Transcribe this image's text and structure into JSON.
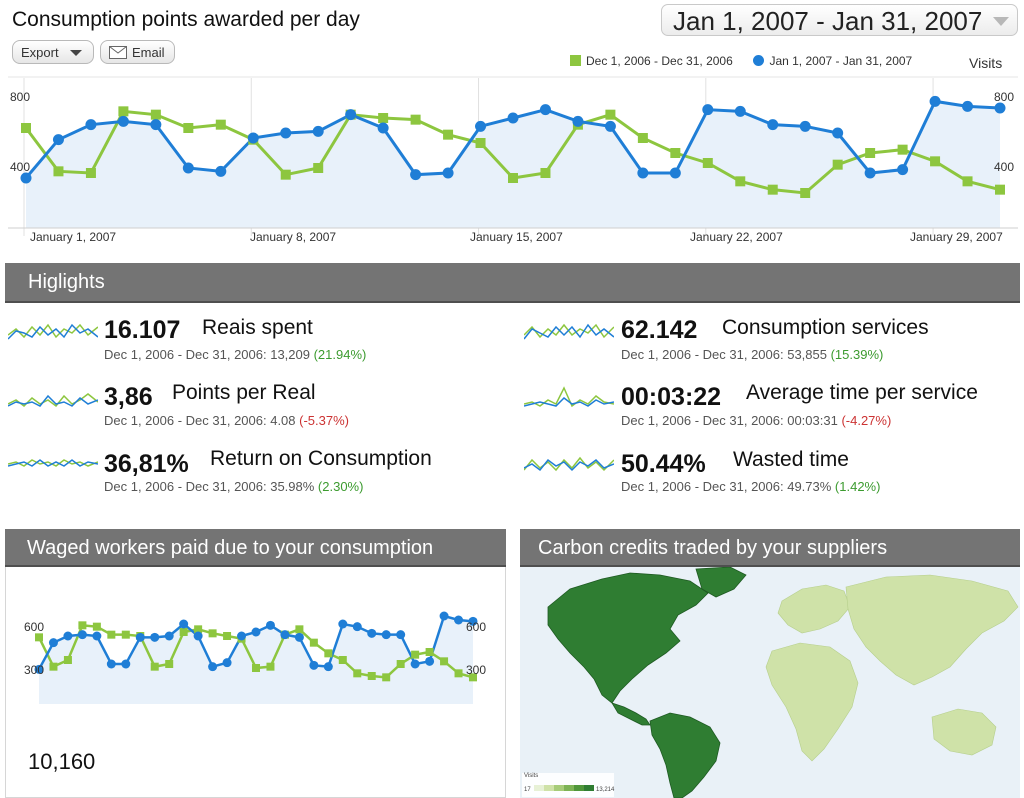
{
  "header": {
    "title": "Consumption points awarded per day",
    "date_range": "Jan 1, 2007 - Jan 31, 2007",
    "export_label": "Export",
    "email_label": "Email"
  },
  "colors": {
    "previous": "#8dc63f",
    "current": "#1f7ed6",
    "area_fill": "#e8f1fa",
    "section_bar": "#747474"
  },
  "legend": {
    "previous": "Dec 1, 2006 - Dec 31, 2006",
    "current": "Jan 1, 2007 - Jan 31, 2007",
    "metric": "Visits"
  },
  "main_chart": {
    "y_top_left": "800",
    "y_mid_left": "400",
    "y_top_right": "800",
    "y_mid_right": "400",
    "x_labels": [
      "January 1, 2007",
      "January 8, 2007",
      "January 15, 2007",
      "January 22, 2007",
      "January 29, 2007"
    ]
  },
  "chart_data": [
    {
      "type": "line",
      "title": "Consumption points awarded per day",
      "ylim": [
        0,
        900
      ],
      "y_ticks": [
        400,
        800
      ],
      "x_tick_labels": [
        "January 1, 2007",
        "January 8, 2007",
        "January 15, 2007",
        "January 22, 2007",
        "January 29, 2007"
      ],
      "series": [
        {
          "name": "Dec 1, 2006 - Dec 31, 2006",
          "values": [
            600,
            340,
            330,
            700,
            680,
            600,
            620,
            530,
            320,
            360,
            680,
            660,
            650,
            560,
            510,
            300,
            330,
            620,
            680,
            540,
            450,
            390,
            280,
            230,
            210,
            380,
            450,
            470,
            400,
            280,
            230
          ]
        },
        {
          "name": "Jan 1, 2007 - Jan 31, 2007",
          "values": [
            300,
            530,
            620,
            640,
            620,
            360,
            340,
            540,
            570,
            580,
            680,
            600,
            320,
            330,
            610,
            660,
            710,
            640,
            610,
            330,
            330,
            710,
            700,
            620,
            610,
            570,
            330,
            350,
            760,
            730,
            720
          ]
        }
      ]
    },
    {
      "type": "line",
      "title": "Waged workers paid due to your consumption",
      "ylim": [
        0,
        750
      ],
      "y_ticks": [
        300,
        600
      ],
      "series": [
        {
          "name": "Dec 1, 2006 - Dec 31, 2006",
          "values": [
            500,
            280,
            330,
            590,
            580,
            520,
            520,
            510,
            280,
            300,
            540,
            560,
            530,
            510,
            490,
            270,
            280,
            520,
            560,
            460,
            380,
            330,
            230,
            210,
            200,
            300,
            370,
            390,
            320,
            230,
            200
          ]
        },
        {
          "name": "Jan 1, 2007 - Jan 31, 2007",
          "values": [
            260,
            460,
            510,
            520,
            510,
            300,
            300,
            500,
            500,
            510,
            600,
            510,
            280,
            310,
            510,
            540,
            590,
            520,
            500,
            290,
            280,
            600,
            580,
            530,
            520,
            520,
            300,
            320,
            660,
            630,
            620
          ]
        }
      ]
    }
  ],
  "highlights": {
    "title": "Higlights",
    "items": [
      {
        "value": "16.107",
        "name": "Reais spent",
        "compare_prefix": "Dec 1, 2006 - Dec 31, 2006: 13,209 ",
        "change": "(21.94%)"
      },
      {
        "value": "3,86",
        "name": "Points per Real",
        "compare_prefix": "Dec 1, 2006 - Dec 31, 2006: 4.08 ",
        "change": "(-5.37%)"
      },
      {
        "value": "36,81%",
        "name": "Return on Consumption",
        "compare_prefix": "Dec 1, 2006 - Dec 31, 2006: 35.98% ",
        "change": "(2.30%)"
      },
      {
        "value": "62.142",
        "name": "Consumption services",
        "compare_prefix": "Dec 1, 2006 - Dec 31, 2006: 53,855 ",
        "change": "(15.39%)"
      },
      {
        "value": "00:03:22",
        "name": "Average time per service",
        "compare_prefix": "Dec 1, 2006 - Dec 31, 2006: 00:03:31 ",
        "change": "(-4.27%)"
      },
      {
        "value": "50.44%",
        "name": "Wasted time",
        "compare_prefix": "Dec 1, 2006 - Dec 31, 2006: 49.73% ",
        "change": "(1.42%)"
      }
    ]
  },
  "workers_panel": {
    "title": "Waged workers paid due to your consumption",
    "y_top_left": "600",
    "y_mid_left": "300",
    "y_top_right": "600",
    "y_mid_right": "300",
    "total": "10,160"
  },
  "map_panel": {
    "title": "Carbon credits traded by your suppliers",
    "legend_title": "Visits",
    "legend_min": "17",
    "legend_max": "13,214"
  }
}
